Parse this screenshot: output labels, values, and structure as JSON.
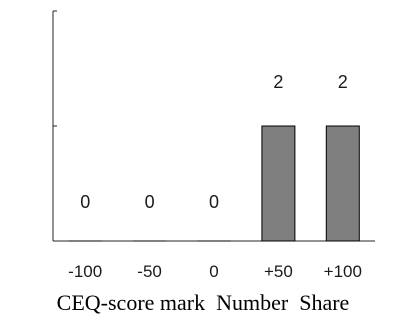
{
  "chart_data": {
    "type": "bar",
    "categories": [
      "-100",
      "-50",
      "0",
      "+50",
      "+100"
    ],
    "values": [
      0,
      0,
      0,
      2,
      2
    ],
    "data_labels": [
      "0",
      "0",
      "0",
      "2",
      "2"
    ],
    "xlabel": "CEQ-score mark  Number  Share",
    "ylabel": "",
    "title": "",
    "ylim": [
      0,
      4
    ],
    "y_ticks_labeled": false,
    "grid": false,
    "legend": "none",
    "bar_color": "#7f7f7f",
    "bar_edge_color": "#000000"
  }
}
